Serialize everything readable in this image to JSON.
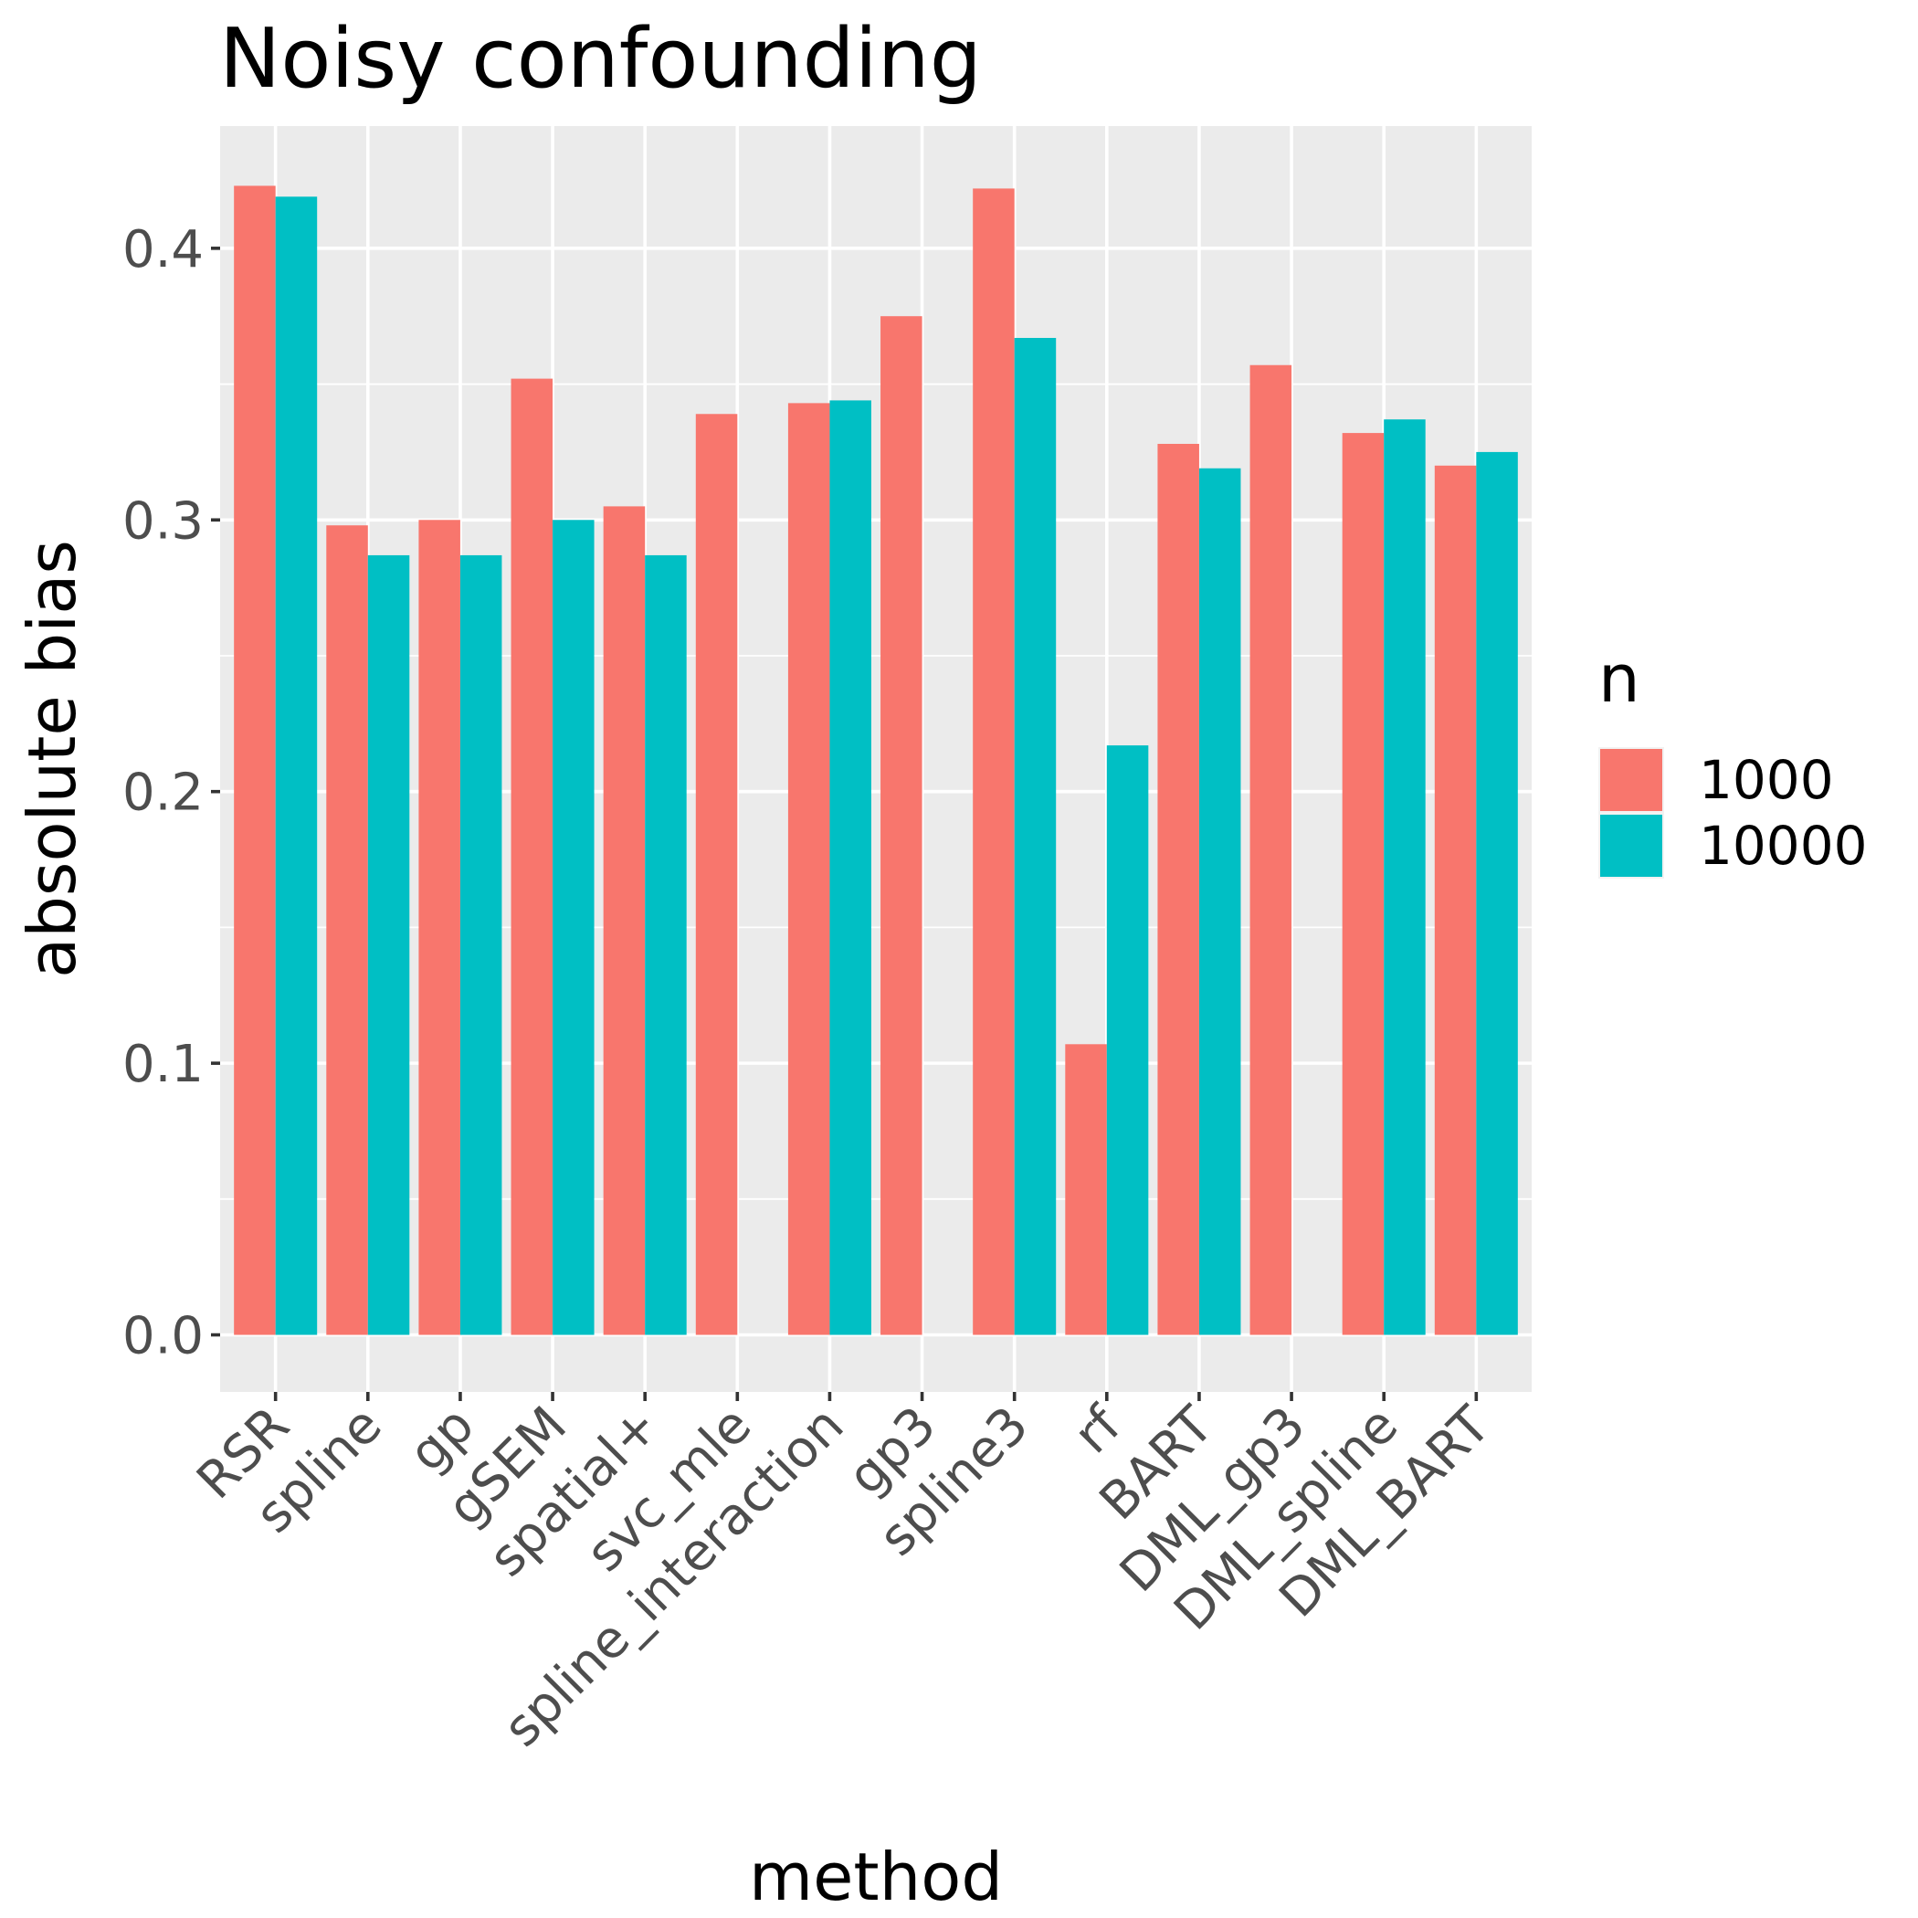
{
  "chart_data": {
    "type": "bar",
    "title": "Noisy confounding",
    "xlabel": "method",
    "ylabel": "absolute bias",
    "categories": [
      "RSR",
      "spline",
      "gp",
      "gSEM",
      "spatial+",
      "svc_mle",
      "spline_interaction",
      "gp3",
      "spline3",
      "rf",
      "BART",
      "DML_gp3",
      "DML_spline",
      "DML_BART"
    ],
    "legend_title": "n",
    "legend_position": "right",
    "series": [
      {
        "name": "1000",
        "color": "#F8766D",
        "values": [
          0.423,
          0.298,
          0.3,
          0.352,
          0.305,
          0.339,
          0.343,
          0.375,
          0.422,
          0.107,
          0.328,
          0.357,
          0.332,
          0.32
        ]
      },
      {
        "name": "10000",
        "color": "#00BFC4",
        "values": [
          0.419,
          0.287,
          0.287,
          0.3,
          0.287,
          null,
          0.344,
          null,
          0.367,
          0.217,
          0.319,
          null,
          0.337,
          0.325
        ]
      }
    ],
    "ylim": [
      -0.021,
      0.445
    ],
    "yticks": [
      "0.0",
      "0.1",
      "0.2",
      "0.3",
      "0.4"
    ],
    "ytick_values": [
      0.0,
      0.1,
      0.2,
      0.3,
      0.4
    ],
    "grid": true,
    "panel_background": "#EBEBEB"
  }
}
